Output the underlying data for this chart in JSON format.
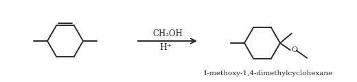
{
  "background_color": "#ffffff",
  "line_color": "#2a2a2a",
  "line_width": 1.4,
  "reagent_text": "CH₃OH",
  "catalyst_text": "H⁺",
  "product_label": "1-methoxy-1,4-dimethylcyclohexane",
  "fig_width": 5.2,
  "fig_height": 1.2,
  "dpi": 100
}
